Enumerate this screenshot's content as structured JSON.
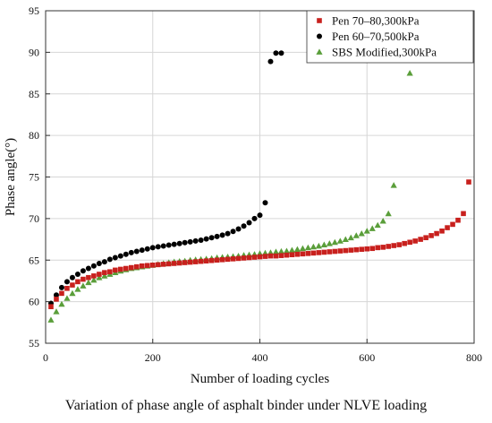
{
  "chart_data": {
    "type": "scatter",
    "title": "",
    "caption": "Variation of phase angle of asphalt binder under NLVE loading",
    "xlabel": "Number of loading cycles",
    "ylabel": "Phase angle(°)",
    "xlim": [
      0,
      800
    ],
    "ylim": [
      55,
      95
    ],
    "xticks": [
      0,
      200,
      400,
      600,
      800
    ],
    "yticks": [
      55,
      60,
      65,
      70,
      75,
      80,
      85,
      90,
      95
    ],
    "grid": true,
    "legend_position": "top-right",
    "series": [
      {
        "name": "Pen 70–80,300kPa",
        "marker": "square",
        "color": "#c8201d",
        "points": [
          [
            10,
            59.4
          ],
          [
            20,
            60.3
          ],
          [
            30,
            61.0
          ],
          [
            40,
            61.6
          ],
          [
            50,
            62.0
          ],
          [
            60,
            62.4
          ],
          [
            70,
            62.7
          ],
          [
            80,
            62.9
          ],
          [
            90,
            63.1
          ],
          [
            100,
            63.3
          ],
          [
            110,
            63.5
          ],
          [
            120,
            63.6
          ],
          [
            130,
            63.8
          ],
          [
            140,
            63.9
          ],
          [
            150,
            64.0
          ],
          [
            160,
            64.1
          ],
          [
            170,
            64.2
          ],
          [
            180,
            64.3
          ],
          [
            190,
            64.35
          ],
          [
            200,
            64.4
          ],
          [
            210,
            64.45
          ],
          [
            220,
            64.5
          ],
          [
            230,
            64.55
          ],
          [
            240,
            64.6
          ],
          [
            250,
            64.65
          ],
          [
            260,
            64.7
          ],
          [
            270,
            64.75
          ],
          [
            280,
            64.8
          ],
          [
            290,
            64.85
          ],
          [
            300,
            64.9
          ],
          [
            310,
            64.95
          ],
          [
            320,
            65.0
          ],
          [
            330,
            65.05
          ],
          [
            340,
            65.1
          ],
          [
            350,
            65.15
          ],
          [
            360,
            65.2
          ],
          [
            370,
            65.25
          ],
          [
            380,
            65.3
          ],
          [
            390,
            65.35
          ],
          [
            400,
            65.4
          ],
          [
            410,
            65.45
          ],
          [
            420,
            65.5
          ],
          [
            430,
            65.5
          ],
          [
            440,
            65.55
          ],
          [
            450,
            65.6
          ],
          [
            460,
            65.65
          ],
          [
            470,
            65.7
          ],
          [
            480,
            65.75
          ],
          [
            490,
            65.8
          ],
          [
            500,
            65.85
          ],
          [
            510,
            65.9
          ],
          [
            520,
            65.95
          ],
          [
            530,
            66.0
          ],
          [
            540,
            66.05
          ],
          [
            550,
            66.1
          ],
          [
            560,
            66.15
          ],
          [
            570,
            66.2
          ],
          [
            580,
            66.25
          ],
          [
            590,
            66.3
          ],
          [
            600,
            66.35
          ],
          [
            610,
            66.4
          ],
          [
            620,
            66.5
          ],
          [
            630,
            66.55
          ],
          [
            640,
            66.65
          ],
          [
            650,
            66.75
          ],
          [
            660,
            66.85
          ],
          [
            670,
            67.0
          ],
          [
            680,
            67.15
          ],
          [
            690,
            67.3
          ],
          [
            700,
            67.5
          ],
          [
            710,
            67.7
          ],
          [
            720,
            67.95
          ],
          [
            730,
            68.2
          ],
          [
            740,
            68.5
          ],
          [
            750,
            68.9
          ],
          [
            760,
            69.3
          ],
          [
            770,
            69.8
          ],
          [
            780,
            70.6
          ],
          [
            790,
            74.4
          ]
        ]
      },
      {
        "name": "Pen 60–70,500kPa",
        "marker": "circle",
        "color": "#000000",
        "points": [
          [
            10,
            59.8
          ],
          [
            20,
            60.8
          ],
          [
            30,
            61.7
          ],
          [
            40,
            62.4
          ],
          [
            50,
            62.9
          ],
          [
            60,
            63.3
          ],
          [
            70,
            63.7
          ],
          [
            80,
            64.0
          ],
          [
            90,
            64.3
          ],
          [
            100,
            64.6
          ],
          [
            110,
            64.8
          ],
          [
            120,
            65.1
          ],
          [
            130,
            65.3
          ],
          [
            140,
            65.5
          ],
          [
            150,
            65.7
          ],
          [
            160,
            65.9
          ],
          [
            170,
            66.05
          ],
          [
            180,
            66.2
          ],
          [
            190,
            66.35
          ],
          [
            200,
            66.5
          ],
          [
            210,
            66.6
          ],
          [
            220,
            66.7
          ],
          [
            230,
            66.8
          ],
          [
            240,
            66.9
          ],
          [
            250,
            67.0
          ],
          [
            260,
            67.1
          ],
          [
            270,
            67.2
          ],
          [
            280,
            67.3
          ],
          [
            290,
            67.4
          ],
          [
            300,
            67.55
          ],
          [
            310,
            67.7
          ],
          [
            320,
            67.85
          ],
          [
            330,
            68.0
          ],
          [
            340,
            68.2
          ],
          [
            350,
            68.45
          ],
          [
            360,
            68.75
          ],
          [
            370,
            69.1
          ],
          [
            380,
            69.5
          ],
          [
            390,
            70.0
          ],
          [
            400,
            70.4
          ],
          [
            410,
            71.9
          ],
          [
            420,
            88.9
          ],
          [
            430,
            89.9
          ],
          [
            440,
            89.9
          ]
        ]
      },
      {
        "name": "SBS Modified,300kPa",
        "marker": "triangle",
        "color": "#5a9e3a",
        "points": [
          [
            10,
            57.8
          ],
          [
            20,
            58.8
          ],
          [
            30,
            59.7
          ],
          [
            40,
            60.4
          ],
          [
            50,
            61.0
          ],
          [
            60,
            61.5
          ],
          [
            70,
            61.9
          ],
          [
            80,
            62.3
          ],
          [
            90,
            62.6
          ],
          [
            100,
            62.9
          ],
          [
            110,
            63.1
          ],
          [
            120,
            63.3
          ],
          [
            130,
            63.5
          ],
          [
            140,
            63.7
          ],
          [
            150,
            63.85
          ],
          [
            160,
            64.0
          ],
          [
            170,
            64.1
          ],
          [
            180,
            64.2
          ],
          [
            190,
            64.3
          ],
          [
            200,
            64.4
          ],
          [
            210,
            64.5
          ],
          [
            220,
            64.6
          ],
          [
            230,
            64.7
          ],
          [
            240,
            64.8
          ],
          [
            250,
            64.85
          ],
          [
            260,
            64.9
          ],
          [
            270,
            65.0
          ],
          [
            280,
            65.05
          ],
          [
            290,
            65.1
          ],
          [
            300,
            65.15
          ],
          [
            310,
            65.2
          ],
          [
            320,
            65.3
          ],
          [
            330,
            65.35
          ],
          [
            340,
            65.4
          ],
          [
            350,
            65.45
          ],
          [
            360,
            65.5
          ],
          [
            370,
            65.6
          ],
          [
            380,
            65.65
          ],
          [
            390,
            65.7
          ],
          [
            400,
            65.8
          ],
          [
            410,
            65.85
          ],
          [
            420,
            65.9
          ],
          [
            430,
            66.0
          ],
          [
            440,
            66.05
          ],
          [
            450,
            66.1
          ],
          [
            460,
            66.2
          ],
          [
            470,
            66.3
          ],
          [
            480,
            66.4
          ],
          [
            490,
            66.5
          ],
          [
            500,
            66.6
          ],
          [
            510,
            66.7
          ],
          [
            520,
            66.85
          ],
          [
            530,
            67.0
          ],
          [
            540,
            67.15
          ],
          [
            550,
            67.3
          ],
          [
            560,
            67.5
          ],
          [
            570,
            67.7
          ],
          [
            580,
            67.95
          ],
          [
            590,
            68.2
          ],
          [
            600,
            68.5
          ],
          [
            610,
            68.8
          ],
          [
            620,
            69.2
          ],
          [
            630,
            69.7
          ],
          [
            640,
            70.6
          ],
          [
            650,
            74.0
          ],
          [
            680,
            87.5
          ]
        ]
      }
    ]
  }
}
